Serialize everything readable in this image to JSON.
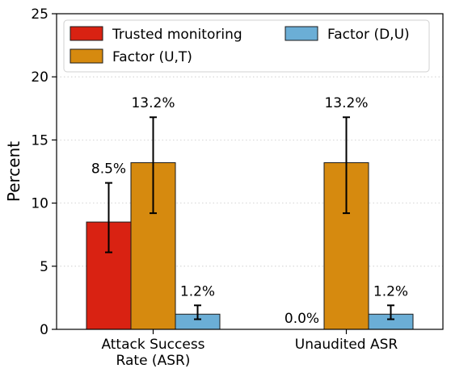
{
  "chart_data": {
    "type": "bar",
    "title": "",
    "xlabel": "",
    "ylabel": "Percent",
    "ylim": [
      0,
      25
    ],
    "yticks": [
      0,
      5,
      10,
      15,
      20,
      25
    ],
    "grid": "horizontal dotted",
    "legend_position": "top",
    "categories": [
      "Attack Success\nRate (ASR)",
      "Unaudited ASR"
    ],
    "series": [
      {
        "name": "Trusted monitoring",
        "color": "#d92212",
        "values": [
          8.5,
          0.0
        ],
        "error_low": [
          6.1,
          0.0
        ],
        "error_high": [
          11.6,
          0.0
        ],
        "labels": [
          "8.5%",
          "0.0%"
        ]
      },
      {
        "name": "Factor (U,T)",
        "color": "#d68a0f",
        "values": [
          13.2,
          13.2
        ],
        "error_low": [
          9.2,
          9.2
        ],
        "error_high": [
          16.8,
          16.8
        ],
        "labels": [
          "13.2%",
          "13.2%"
        ]
      },
      {
        "name": "Factor (D,U)",
        "color": "#6baed6",
        "values": [
          1.2,
          1.2
        ],
        "error_low": [
          0.8,
          0.8
        ],
        "error_high": [
          1.9,
          1.9
        ],
        "labels": [
          "1.2%",
          "1.2%"
        ]
      }
    ]
  }
}
